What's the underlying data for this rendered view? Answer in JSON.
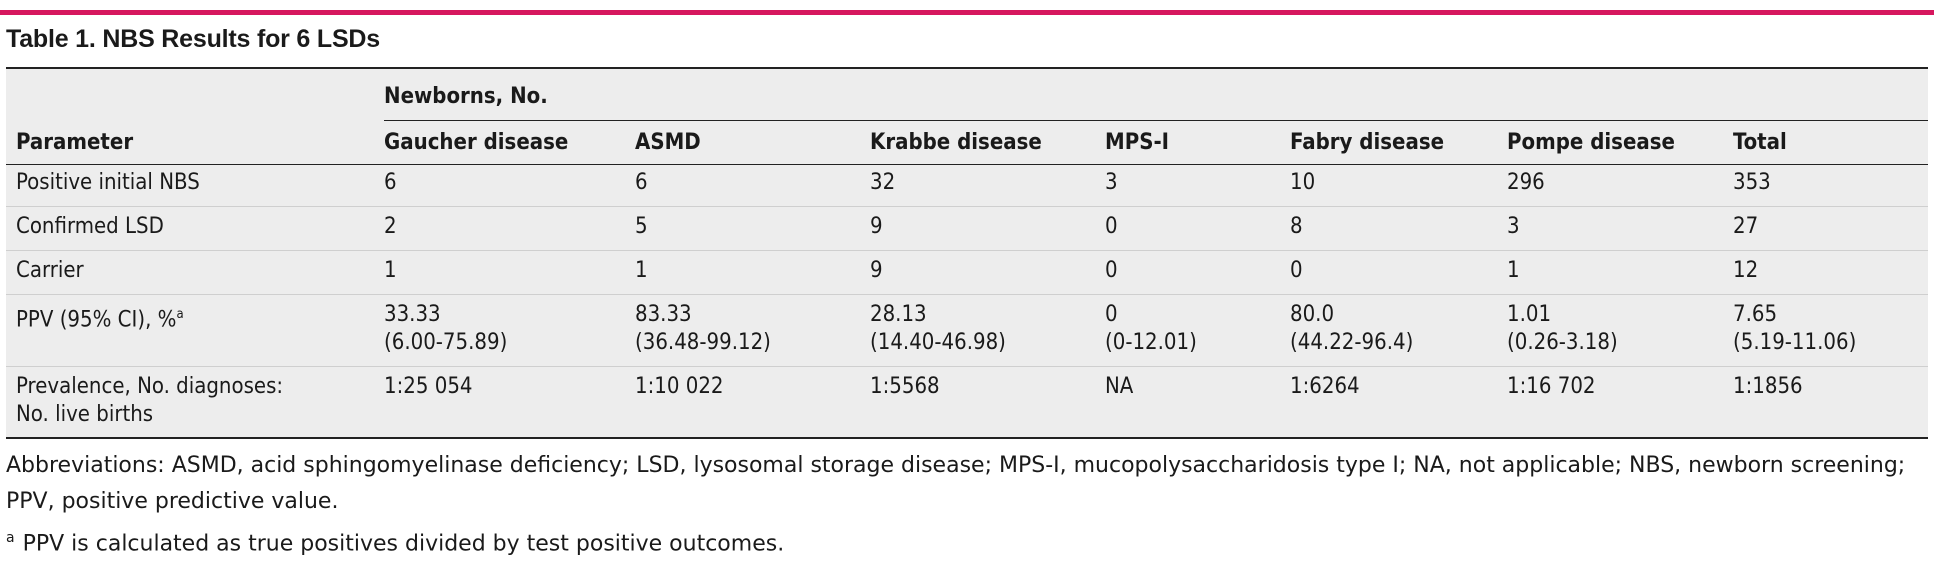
{
  "accent_color": "#d6175e",
  "table_bg": "#ededed",
  "title": "Table 1. NBS Results for 6 LSDs",
  "group_header": "Newborns, No.",
  "columns": [
    "Parameter",
    "Gaucher disease",
    "ASMD",
    "Krabbe disease",
    "MPS-I",
    "Fabry disease",
    "Pompe disease",
    "Total"
  ],
  "rows": [
    {
      "label": "Positive initial NBS",
      "values": [
        "6",
        "6",
        "32",
        "3",
        "10",
        "296",
        "353"
      ]
    },
    {
      "label": "Confirmed LSD",
      "values": [
        "2",
        "5",
        "9",
        "0",
        "8",
        "3",
        "27"
      ]
    },
    {
      "label": "Carrier",
      "values": [
        "1",
        "1",
        "9",
        "0",
        "0",
        "1",
        "12"
      ]
    },
    {
      "label": "PPV (95% CI), %",
      "label_sup": "a",
      "values": [
        "33.33",
        "83.33",
        "28.13",
        "0",
        "80.0",
        "1.01",
        "7.65"
      ],
      "values_line2": [
        "(6.00-75.89)",
        "(36.48-99.12)",
        "(14.40-46.98)",
        "(0-12.01)",
        "(44.22-96.4)",
        "(0.26-3.18)",
        "(5.19-11.06)"
      ]
    },
    {
      "label": "Prevalence, No. diagnoses:",
      "label_line2": "No. live births",
      "values": [
        "1:25 054",
        "1:10 022",
        "1:5568",
        "NA",
        "1:6264",
        "1:16 702",
        "1:1856"
      ]
    }
  ],
  "abbreviations": "Abbreviations: ASMD, acid sphingomyelinase deficiency; LSD, lysosomal storage disease; MPS-I, mucopolysaccharidosis type I; NA, not applicable; NBS, newborn screening; PPV, positive predictive value.",
  "footnote_mark": "a",
  "footnote_text": "PPV is calculated as true positives divided by test positive outcomes."
}
